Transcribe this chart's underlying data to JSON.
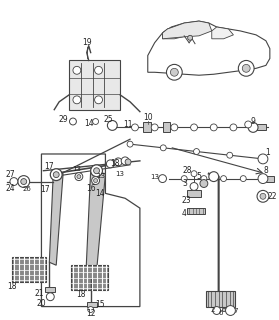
{
  "background_color": "#ffffff",
  "line_color": "#444444",
  "fig_width": 2.79,
  "fig_height": 3.2,
  "dpi": 100,
  "gray_fill": "#c8c8c8",
  "dark_fill": "#888888",
  "light_fill": "#e8e8e8"
}
